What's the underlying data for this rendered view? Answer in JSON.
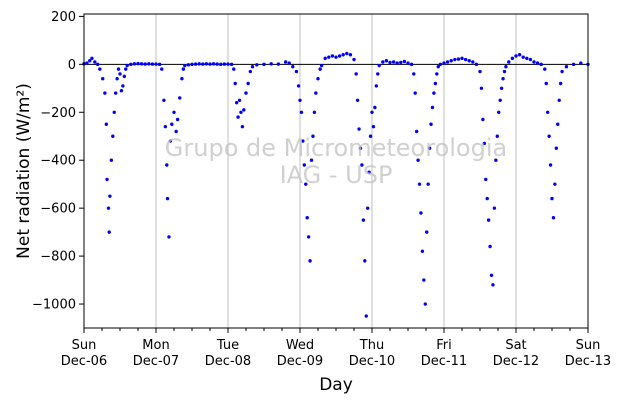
{
  "chart_data": {
    "type": "scatter",
    "title": "",
    "xlabel": "Day",
    "ylabel": "Net radiation (W/m²)",
    "ylim": [
      -1100,
      210
    ],
    "yticks": [
      200,
      0,
      -200,
      -400,
      -600,
      -800,
      -1000
    ],
    "xlim": [
      0,
      7
    ],
    "xticks": [
      {
        "day": "Sun",
        "date": "Dec-06"
      },
      {
        "day": "Mon",
        "date": "Dec-07"
      },
      {
        "day": "Tue",
        "date": "Dec-08"
      },
      {
        "day": "Wed",
        "date": "Dec-09"
      },
      {
        "day": "Thu",
        "date": "Dec-10"
      },
      {
        "day": "Fri",
        "date": "Dec-11"
      },
      {
        "day": "Sat",
        "date": "Dec-12"
      },
      {
        "day": "Sun",
        "date": "Dec-13"
      }
    ],
    "grid": "vertical at each day",
    "zero_line": true,
    "marker_color": "#0000ff",
    "watermark": [
      "Grupo de Micrometeorologia",
      "IAG - USP"
    ],
    "series": [
      {
        "points": [
          [
            0.0,
            2
          ],
          [
            0.04,
            5
          ],
          [
            0.08,
            15
          ],
          [
            0.11,
            25
          ],
          [
            0.15,
            10
          ],
          [
            0.19,
            0
          ],
          [
            0.22,
            -20
          ],
          [
            0.26,
            -60
          ],
          [
            0.29,
            -120
          ],
          [
            0.31,
            -250
          ],
          [
            0.32,
            -480
          ],
          [
            0.34,
            -600
          ],
          [
            0.35,
            -700
          ],
          [
            0.36,
            -550
          ],
          [
            0.38,
            -400
          ],
          [
            0.4,
            -300
          ],
          [
            0.42,
            -200
          ],
          [
            0.44,
            -120
          ],
          [
            0.46,
            -60
          ],
          [
            0.48,
            -20
          ],
          [
            0.5,
            -40
          ],
          [
            0.52,
            -110
          ],
          [
            0.54,
            -90
          ],
          [
            0.56,
            -50
          ],
          [
            0.58,
            -20
          ],
          [
            0.6,
            -5
          ],
          [
            0.65,
            0
          ],
          [
            0.7,
            2
          ],
          [
            0.75,
            3
          ],
          [
            0.8,
            2
          ],
          [
            0.85,
            1
          ],
          [
            0.9,
            2
          ],
          [
            0.95,
            1
          ],
          [
            1.0,
            1
          ],
          [
            1.05,
            0
          ],
          [
            1.08,
            -20
          ],
          [
            1.11,
            -150
          ],
          [
            1.13,
            -260
          ],
          [
            1.15,
            -420
          ],
          [
            1.16,
            -560
          ],
          [
            1.18,
            -720
          ],
          [
            1.2,
            -320
          ],
          [
            1.22,
            -250
          ],
          [
            1.25,
            -200
          ],
          [
            1.28,
            -280
          ],
          [
            1.3,
            -230
          ],
          [
            1.33,
            -140
          ],
          [
            1.36,
            -60
          ],
          [
            1.38,
            -20
          ],
          [
            1.4,
            -5
          ],
          [
            1.45,
            -2
          ],
          [
            1.5,
            0
          ],
          [
            1.55,
            1
          ],
          [
            1.6,
            2
          ],
          [
            1.65,
            1
          ],
          [
            1.7,
            2
          ],
          [
            1.75,
            1
          ],
          [
            1.8,
            2
          ],
          [
            1.85,
            1
          ],
          [
            1.9,
            0
          ],
          [
            1.95,
            1
          ],
          [
            2.0,
            1
          ],
          [
            2.05,
            0
          ],
          [
            2.08,
            -20
          ],
          [
            2.1,
            -80
          ],
          [
            2.12,
            -160
          ],
          [
            2.14,
            -220
          ],
          [
            2.16,
            -150
          ],
          [
            2.18,
            -200
          ],
          [
            2.2,
            -260
          ],
          [
            2.22,
            -190
          ],
          [
            2.25,
            -120
          ],
          [
            2.28,
            -80
          ],
          [
            2.31,
            -30
          ],
          [
            2.34,
            -10
          ],
          [
            2.4,
            -2
          ],
          [
            2.5,
            0
          ],
          [
            2.6,
            2
          ],
          [
            2.7,
            1
          ],
          [
            2.8,
            10
          ],
          [
            2.85,
            5
          ],
          [
            2.9,
            -10
          ],
          [
            2.95,
            -30
          ],
          [
            2.98,
            -90
          ],
          [
            3.0,
            -150
          ],
          [
            3.02,
            -200
          ],
          [
            3.04,
            -320
          ],
          [
            3.06,
            -420
          ],
          [
            3.08,
            -500
          ],
          [
            3.1,
            -640
          ],
          [
            3.12,
            -720
          ],
          [
            3.14,
            -820
          ],
          [
            3.16,
            -400
          ],
          [
            3.18,
            -300
          ],
          [
            3.2,
            -200
          ],
          [
            3.22,
            -120
          ],
          [
            3.25,
            -60
          ],
          [
            3.28,
            -20
          ],
          [
            3.3,
            -5
          ],
          [
            3.35,
            25
          ],
          [
            3.4,
            30
          ],
          [
            3.45,
            35
          ],
          [
            3.5,
            30
          ],
          [
            3.55,
            35
          ],
          [
            3.6,
            40
          ],
          [
            3.65,
            45
          ],
          [
            3.7,
            40
          ],
          [
            3.75,
            20
          ],
          [
            3.78,
            -40
          ],
          [
            3.8,
            -150
          ],
          [
            3.82,
            -270
          ],
          [
            3.84,
            -350
          ],
          [
            3.86,
            -420
          ],
          [
            3.88,
            -650
          ],
          [
            3.9,
            -820
          ],
          [
            3.92,
            -1050
          ],
          [
            3.94,
            -600
          ],
          [
            3.96,
            -450
          ],
          [
            3.98,
            -300
          ],
          [
            4.0,
            -200
          ],
          [
            4.02,
            -260
          ],
          [
            4.04,
            -180
          ],
          [
            4.06,
            -90
          ],
          [
            4.08,
            -40
          ],
          [
            4.1,
            -5
          ],
          [
            4.15,
            10
          ],
          [
            4.2,
            15
          ],
          [
            4.25,
            8
          ],
          [
            4.3,
            10
          ],
          [
            4.35,
            5
          ],
          [
            4.4,
            8
          ],
          [
            4.45,
            12
          ],
          [
            4.5,
            5
          ],
          [
            4.55,
            0
          ],
          [
            4.58,
            -40
          ],
          [
            4.6,
            -120
          ],
          [
            4.62,
            -280
          ],
          [
            4.64,
            -400
          ],
          [
            4.66,
            -500
          ],
          [
            4.68,
            -620
          ],
          [
            4.7,
            -780
          ],
          [
            4.72,
            -900
          ],
          [
            4.74,
            -1000
          ],
          [
            4.76,
            -700
          ],
          [
            4.78,
            -500
          ],
          [
            4.8,
            -350
          ],
          [
            4.82,
            -250
          ],
          [
            4.84,
            -180
          ],
          [
            4.86,
            -120
          ],
          [
            4.88,
            -80
          ],
          [
            4.9,
            -40
          ],
          [
            4.92,
            -10
          ],
          [
            4.95,
            0
          ],
          [
            5.0,
            5
          ],
          [
            5.05,
            10
          ],
          [
            5.1,
            15
          ],
          [
            5.15,
            20
          ],
          [
            5.2,
            22
          ],
          [
            5.25,
            25
          ],
          [
            5.3,
            20
          ],
          [
            5.35,
            15
          ],
          [
            5.4,
            10
          ],
          [
            5.45,
            0
          ],
          [
            5.5,
            -30
          ],
          [
            5.52,
            -100
          ],
          [
            5.54,
            -230
          ],
          [
            5.56,
            -330
          ],
          [
            5.58,
            -480
          ],
          [
            5.6,
            -560
          ],
          [
            5.62,
            -650
          ],
          [
            5.64,
            -760
          ],
          [
            5.66,
            -880
          ],
          [
            5.68,
            -920
          ],
          [
            5.7,
            -600
          ],
          [
            5.72,
            -400
          ],
          [
            5.74,
            -300
          ],
          [
            5.76,
            -200
          ],
          [
            5.78,
            -150
          ],
          [
            5.8,
            -100
          ],
          [
            5.82,
            -60
          ],
          [
            5.84,
            -30
          ],
          [
            5.86,
            -10
          ],
          [
            5.9,
            10
          ],
          [
            5.95,
            25
          ],
          [
            6.0,
            35
          ],
          [
            6.05,
            40
          ],
          [
            6.1,
            30
          ],
          [
            6.15,
            25
          ],
          [
            6.2,
            20
          ],
          [
            6.25,
            10
          ],
          [
            6.3,
            5
          ],
          [
            6.35,
            0
          ],
          [
            6.4,
            -20
          ],
          [
            6.42,
            -80
          ],
          [
            6.44,
            -200
          ],
          [
            6.46,
            -300
          ],
          [
            6.48,
            -420
          ],
          [
            6.5,
            -560
          ],
          [
            6.52,
            -640
          ],
          [
            6.54,
            -500
          ],
          [
            6.56,
            -350
          ],
          [
            6.58,
            -250
          ],
          [
            6.6,
            -150
          ],
          [
            6.62,
            -80
          ],
          [
            6.64,
            -30
          ],
          [
            6.7,
            -10
          ],
          [
            6.8,
            0
          ],
          [
            6.9,
            5
          ],
          [
            7.0,
            0
          ]
        ]
      }
    ]
  }
}
